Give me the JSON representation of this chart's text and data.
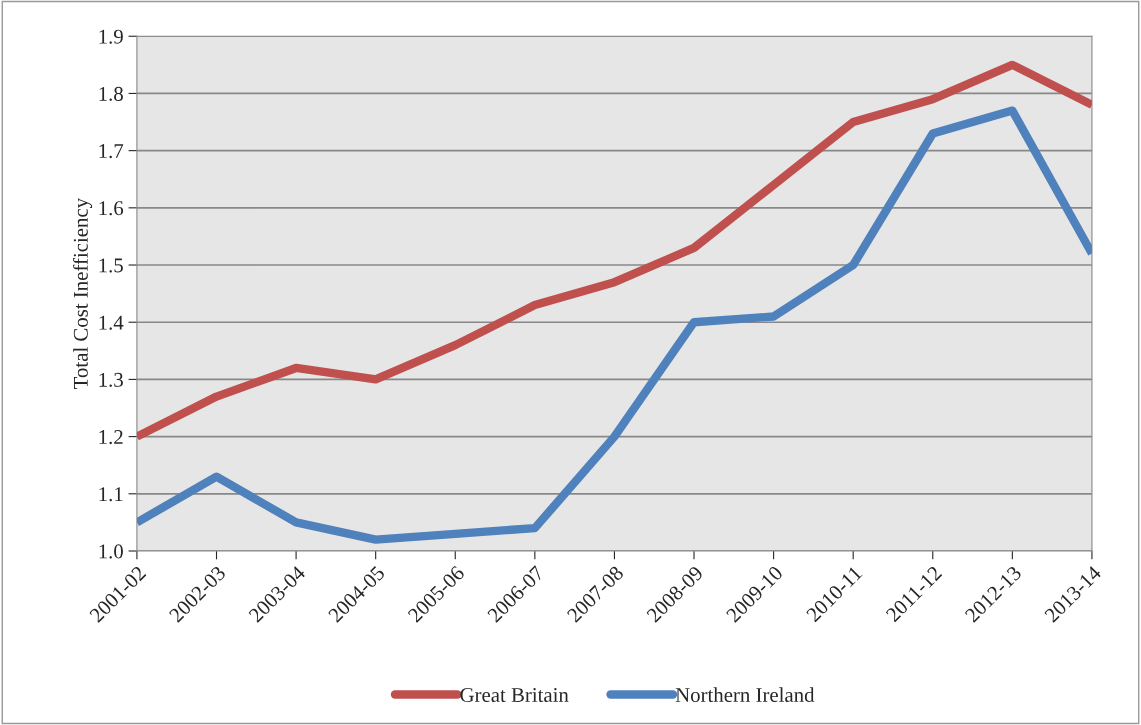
{
  "chart_data": {
    "type": "line",
    "ylabel": "Total Cost Inefficiency",
    "categories": [
      "2001-02",
      "2002-03",
      "2003-04",
      "2004-05",
      "2005-06",
      "2006-07",
      "2007-08",
      "2008-09",
      "2009-10",
      "2010-11",
      "2011-12",
      "2012-13",
      "2013-14"
    ],
    "series": [
      {
        "name": "Great Britain",
        "color": "#c0504d",
        "values": [
          1.2,
          1.27,
          1.32,
          1.3,
          1.36,
          1.43,
          1.47,
          1.53,
          1.64,
          1.75,
          1.79,
          1.85,
          1.78
        ]
      },
      {
        "name": "Northern Ireland",
        "color": "#4f81bd",
        "values": [
          1.05,
          1.13,
          1.05,
          1.02,
          1.03,
          1.04,
          1.2,
          1.4,
          1.41,
          1.5,
          1.73,
          1.77,
          1.52
        ]
      }
    ],
    "ylim": [
      1.0,
      1.9
    ],
    "yticks": [
      {
        "value": 1.0,
        "label": "1.0"
      },
      1.1,
      1.2,
      1.3,
      1.4,
      1.5,
      1.6,
      1.7,
      1.8,
      1.9
    ],
    "grid": "y",
    "legend": "bottom",
    "marker": "none",
    "line_style": "solid"
  }
}
